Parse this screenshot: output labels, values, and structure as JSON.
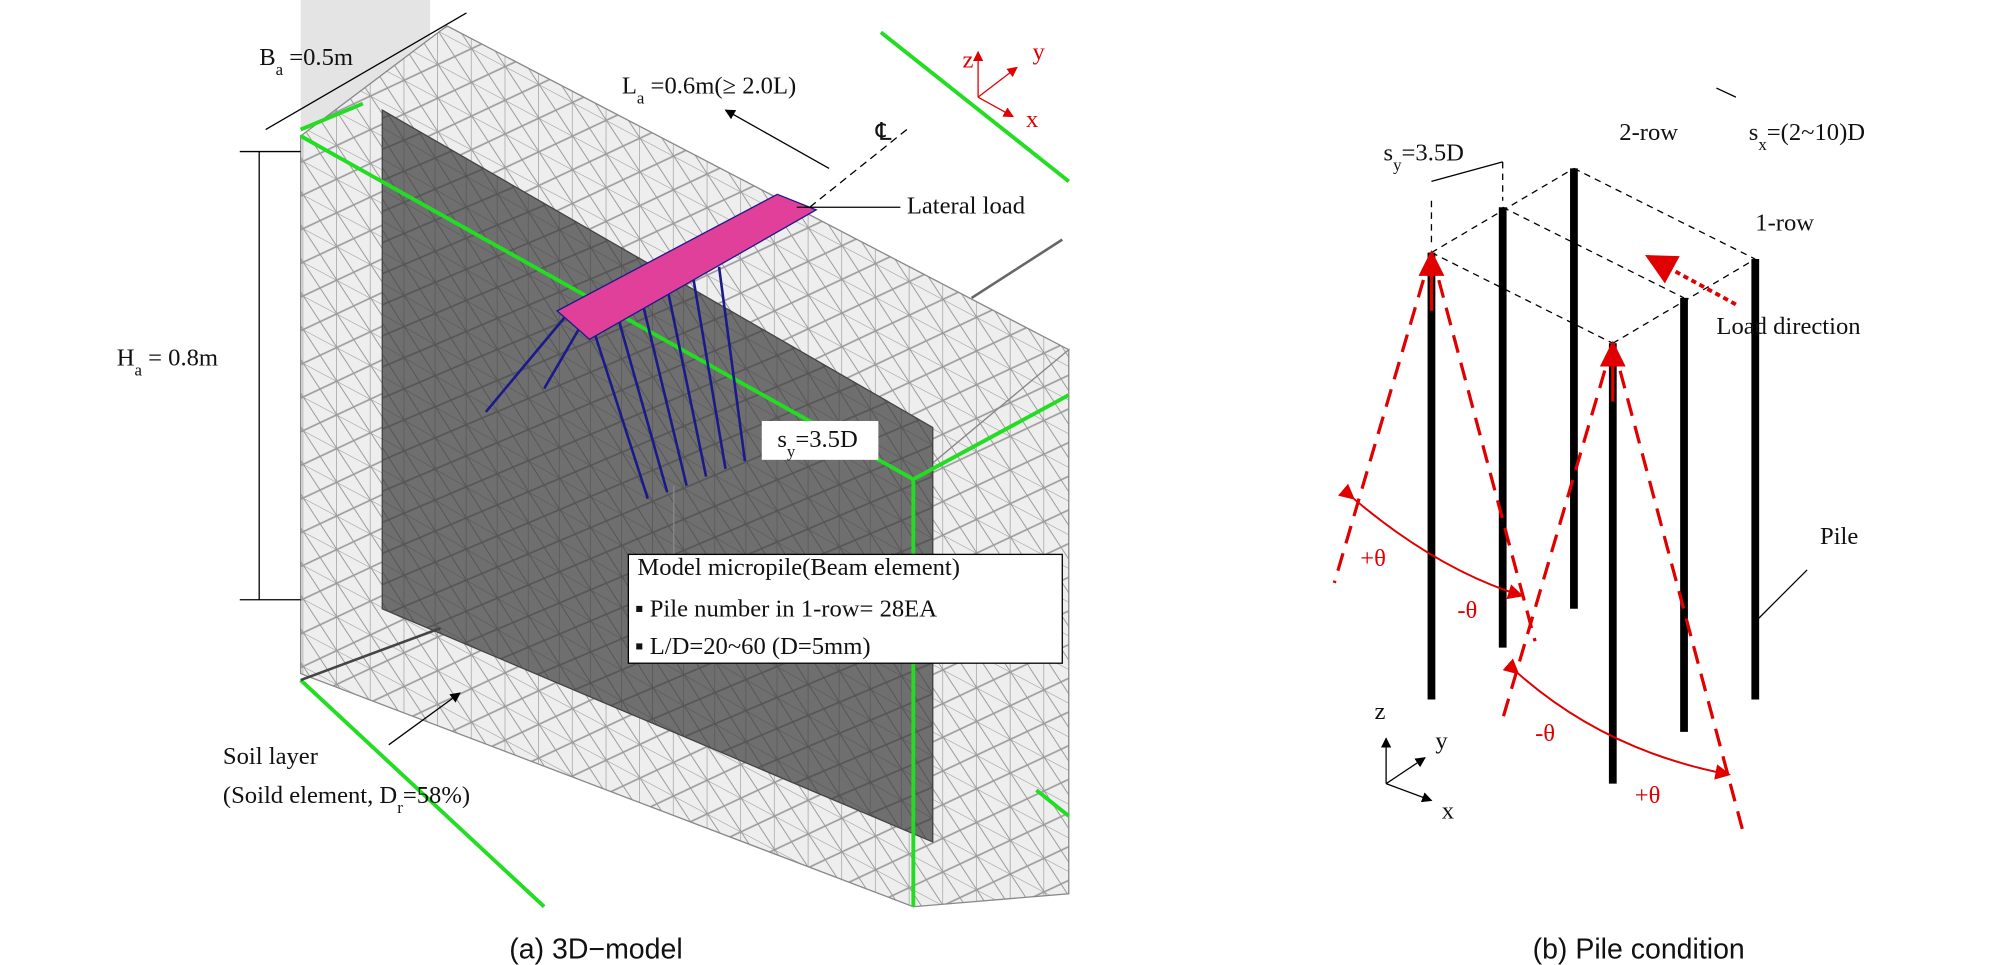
{
  "panel_a": {
    "caption": "(a) 3D−model",
    "axes": [
      "z",
      "y",
      "x"
    ],
    "labels": [
      {
        "parts": [
          {
            "text": "B"
          },
          {
            "text": "a",
            "sub": true
          },
          {
            "text": " =0.5m"
          }
        ]
      },
      {
        "parts": [
          {
            "text": "L"
          },
          {
            "text": "a",
            "sub": true
          },
          {
            "text": " =0.6m(≥ 2.0L)"
          }
        ]
      },
      {
        "parts": [
          {
            "text": "℄"
          }
        ]
      },
      {
        "parts": [
          {
            "text": "Lateral load"
          }
        ]
      },
      {
        "parts": [
          {
            "text": "H"
          },
          {
            "text": "a",
            "sub": true
          },
          {
            "text": " = 0.8m"
          }
        ]
      },
      {
        "parts": [
          {
            "text": "s"
          },
          {
            "text": "y",
            "sub": true
          },
          {
            "text": "=3.5D"
          }
        ]
      },
      {
        "parts": [
          {
            "text": "Model micropile(Beam element)"
          }
        ]
      },
      {
        "parts": [
          {
            "text": "▪ Pile number in 1-row= 28EA"
          }
        ]
      },
      {
        "parts": [
          {
            "text": "▪ L/D=20~60 (D=5mm)"
          }
        ]
      },
      {
        "parts": [
          {
            "text": "Soil layer"
          }
        ]
      },
      {
        "parts": [
          {
            "text": "(Soild element, D"
          },
          {
            "text": "r",
            "sub": true
          },
          {
            "text": "=58%)"
          }
        ]
      }
    ]
  },
  "panel_b": {
    "caption": "(b) Pile condition",
    "axes": [
      "z",
      "y",
      "x"
    ],
    "labels": [
      {
        "parts": [
          {
            "text": "s"
          },
          {
            "text": "y",
            "sub": true
          },
          {
            "text": "=3.5D"
          }
        ]
      },
      {
        "parts": [
          {
            "text": "2-row"
          }
        ]
      },
      {
        "parts": [
          {
            "text": "s"
          },
          {
            "text": "x",
            "sub": true
          },
          {
            "text": "=(2~10)D"
          }
        ]
      },
      {
        "parts": [
          {
            "text": "1-row"
          }
        ]
      },
      {
        "parts": [
          {
            "text": "Load direction"
          }
        ]
      },
      {
        "parts": [
          {
            "text": "Pile"
          }
        ]
      },
      {
        "parts": [
          {
            "text": "+θ"
          }
        ],
        "color": "#e00000"
      },
      {
        "parts": [
          {
            "text": "-θ"
          }
        ],
        "color": "#e00000"
      },
      {
        "parts": [
          {
            "text": "-θ"
          }
        ],
        "color": "#e00000"
      },
      {
        "parts": [
          {
            "text": "+θ"
          }
        ],
        "color": "#e00000"
      }
    ]
  }
}
